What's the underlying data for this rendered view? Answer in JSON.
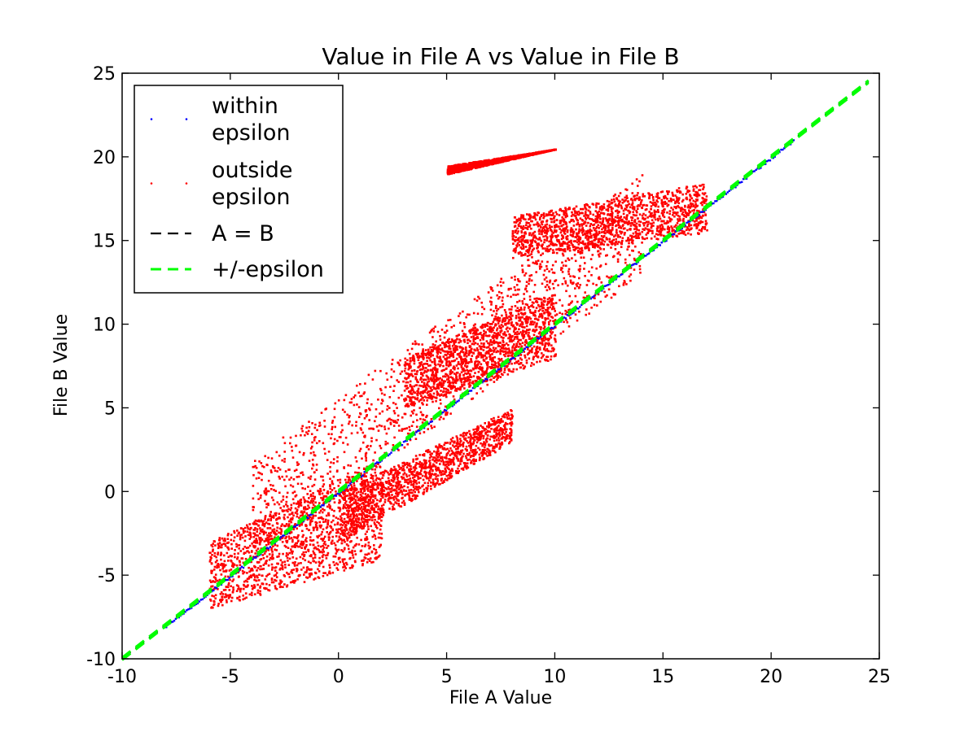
{
  "chart_data": {
    "type": "scatter",
    "title": "Value in File A vs Value in File B",
    "xlabel": "File A Value",
    "ylabel": "File B Value",
    "xlim": [
      -10,
      25
    ],
    "ylim": [
      -10,
      25
    ],
    "xticks": [
      -10,
      -5,
      0,
      5,
      10,
      15,
      20,
      25
    ],
    "yticks": [
      -10,
      -5,
      0,
      5,
      10,
      15,
      20,
      25
    ],
    "xtick_labels": [
      "-10",
      "-5",
      "0",
      "5",
      "10",
      "15",
      "20",
      "25"
    ],
    "ytick_labels": [
      "-10",
      "-5",
      "0",
      "5",
      "10",
      "15",
      "20",
      "25"
    ],
    "grid": false,
    "legend_position": "upper-left",
    "series": [
      {
        "name": "within epsilon",
        "legend_lines": [
          "within",
          "epsilon"
        ],
        "kind": "points",
        "color": "#0000ff",
        "x_range": [
          -8,
          21
        ]
      },
      {
        "name": "outside epsilon",
        "legend_lines": [
          "outside",
          "epsilon"
        ],
        "kind": "points",
        "color": "#ff0000",
        "clusters": [
          {
            "x": [
              -4,
              14
            ],
            "y_from": [
              -4,
              13
            ],
            "y_to": [
              2,
              19
            ]
          },
          {
            "x": [
              -6,
              2
            ],
            "y_from": [
              -7,
              -4
            ],
            "y_to": [
              -3,
              2
            ]
          },
          {
            "x": [
              0,
              8
            ],
            "y_from": [
              -3,
              3
            ],
            "y_to": [
              0,
              5
            ]
          },
          {
            "x": [
              3,
              10
            ],
            "y_from": [
              5,
              8
            ],
            "y_to": [
              8,
              12
            ]
          },
          {
            "x": [
              8,
              17
            ],
            "y_from": [
              14,
              15.5
            ],
            "y_to": [
              16.5,
              18.5
            ]
          },
          {
            "x": [
              5,
              10
            ],
            "y_from": [
              19,
              20.5
            ],
            "y_to": [
              19.5,
              20.5
            ]
          }
        ]
      },
      {
        "name": "A = B",
        "legend_lines": [
          "A = B"
        ],
        "kind": "line",
        "style": "dashed",
        "color": "#000000",
        "x": [
          -10,
          24.5
        ],
        "y": [
          -10,
          24.5
        ]
      },
      {
        "name": "+/-epsilon",
        "legend_lines": [
          "+/-epsilon"
        ],
        "kind": "line",
        "style": "dashed",
        "color": "#00ff00",
        "x": [
          -10,
          24.5
        ],
        "y": [
          -10,
          24.5
        ]
      }
    ]
  }
}
